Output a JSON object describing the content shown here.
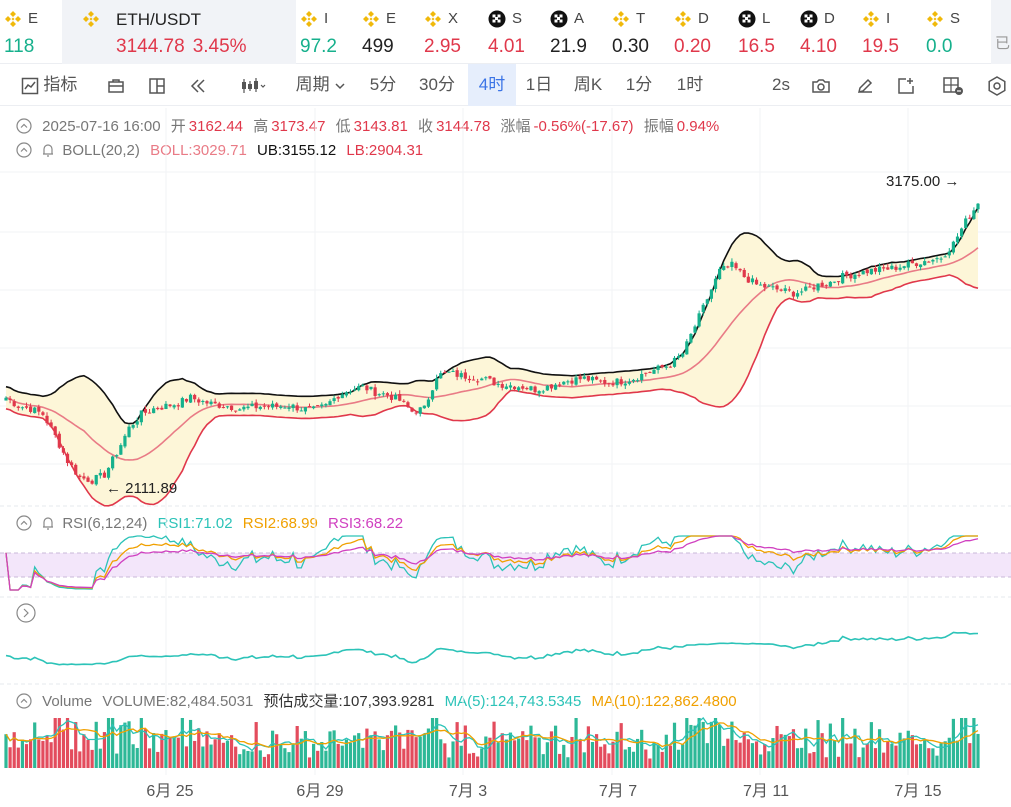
{
  "tickers": [
    {
      "symbol": "E",
      "value": "118",
      "color": "#16b08c",
      "coin": "binance"
    },
    {
      "symbol": "ETH/USDT",
      "value": "3144.78",
      "change": "3.45%",
      "color": "#e0384b",
      "coin": "binance",
      "active": true
    },
    {
      "symbol": "I",
      "value": "97.2",
      "color": "#16b08c",
      "coin": "binance"
    },
    {
      "symbol": "E",
      "value": "499",
      "color": "#222",
      "coin": "binance"
    },
    {
      "symbol": "X",
      "value": "2.95",
      "color": "#e0384b",
      "coin": "binance"
    },
    {
      "symbol": "S",
      "value": "4.01",
      "color": "#e0384b",
      "coin": "okx"
    },
    {
      "symbol": "A",
      "value": "21.9",
      "color": "#222",
      "coin": "okx"
    },
    {
      "symbol": "T",
      "value": "0.30",
      "color": "#222",
      "coin": "binance"
    },
    {
      "symbol": "D",
      "value": "0.20",
      "color": "#e0384b",
      "coin": "binance"
    },
    {
      "symbol": "L",
      "value": "16.5",
      "color": "#e0384b",
      "coin": "okx"
    },
    {
      "symbol": "D",
      "value": "4.10",
      "color": "#e0384b",
      "coin": "okx"
    },
    {
      "symbol": "I",
      "value": "19.5",
      "color": "#e0384b",
      "coin": "binance"
    },
    {
      "symbol": "S",
      "value": "0.0",
      "color": "#16b08c",
      "coin": "binance"
    }
  ],
  "more_tab": {
    "label": "已"
  },
  "toolbar": {
    "indicator_label": "指标",
    "period_label": "周期",
    "intervals": [
      "5分",
      "30分",
      "4时",
      "1日",
      "周K",
      "1分",
      "1时"
    ],
    "selected_interval": "4时",
    "refresh_label": "2s"
  },
  "ohlc": {
    "date": "2025-07-16 16:00",
    "open_label": "开",
    "open": "3162.44",
    "high_label": "高",
    "high": "3173.47",
    "low_label": "低",
    "low": "3143.81",
    "close_label": "收",
    "close": "3144.78",
    "change_label": "涨幅",
    "change": "-0.56%(-17.67)",
    "amp_label": "振幅",
    "amp": "0.94%"
  },
  "boll": {
    "label": "BOLL(20,2)",
    "mid": "BOLL:3029.71",
    "ub": "UB:3155.12",
    "lb": "LB:2904.31"
  },
  "rsi": {
    "label": "RSI(6,12,24)",
    "rsi1": "RSI1:71.02",
    "rsi2": "RSI2:68.99",
    "rsi3": "RSI3:68.22"
  },
  "volume": {
    "label": "Volume",
    "volume": "VOLUME:82,484.5031",
    "est": "预估成交量:107,393.9281",
    "ma5": "MA(5):124,743.5345",
    "ma10": "MA(10):122,862.4800"
  },
  "chart_data": {
    "type": "candlestick",
    "x_tick_labels": [
      "6月 25",
      "6月 29",
      "7月 3",
      "7月 7",
      "7月 11",
      "7月 15"
    ],
    "max_label": "3175.00",
    "min_label": "2111.89",
    "price_range": [
      2050,
      3260
    ],
    "close_path": [
      2440,
      2410,
      2400,
      2380,
      2300,
      2210,
      2150,
      2140,
      2160,
      2240,
      2330,
      2380,
      2400,
      2410,
      2420,
      2440,
      2425,
      2415,
      2410,
      2400,
      2405,
      2410,
      2408,
      2412,
      2400,
      2395,
      2410,
      2450,
      2470,
      2480,
      2460,
      2450,
      2430,
      2390,
      2400,
      2520,
      2530,
      2520,
      2515,
      2505,
      2490,
      2485,
      2480,
      2470,
      2480,
      2495,
      2505,
      2510,
      2500,
      2495,
      2500,
      2510,
      2530,
      2545,
      2560,
      2600,
      2700,
      2800,
      2900,
      2920,
      2880,
      2850,
      2840,
      2830,
      2820,
      2830,
      2850,
      2860,
      2880,
      2890,
      2900,
      2905,
      2910,
      2920,
      2930,
      2940,
      2950,
      3000,
      3080,
      3144.78
    ],
    "colors": {
      "up": "#16b08c",
      "down": "#e0384b",
      "boll_mid": "#e97b86",
      "boll_upper": "#111111",
      "boll_lower": "#e0384b",
      "band_fill": "#fdf6d8",
      "rsi1": "#2cc3b8",
      "rsi2": "#f0a000",
      "rsi3": "#d040c0",
      "ma5": "#2cc3b8",
      "ma10": "#f0a000"
    }
  }
}
